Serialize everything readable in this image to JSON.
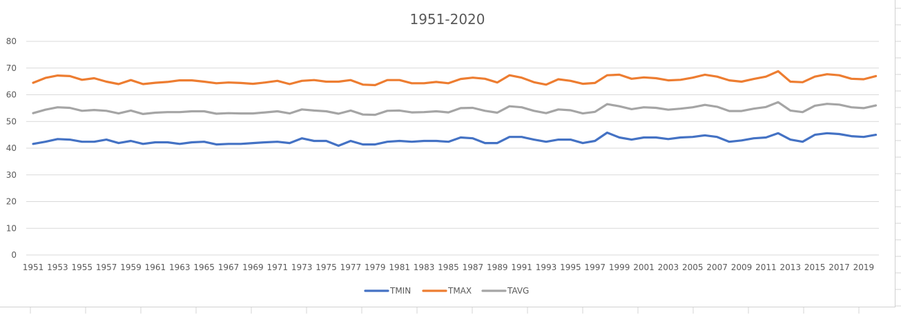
{
  "chart_data": {
    "type": "line",
    "title": "1951-2020",
    "xlabel": "",
    "ylabel": "",
    "ylim": [
      0,
      80
    ],
    "yticks": [
      0,
      10,
      20,
      30,
      40,
      50,
      60,
      70,
      80
    ],
    "grid": "horizontal",
    "legend_position": "bottom",
    "x": [
      1951,
      1952,
      1953,
      1954,
      1955,
      1956,
      1957,
      1958,
      1959,
      1960,
      1961,
      1962,
      1963,
      1964,
      1965,
      1966,
      1967,
      1968,
      1969,
      1970,
      1971,
      1972,
      1973,
      1974,
      1975,
      1976,
      1977,
      1978,
      1979,
      1980,
      1981,
      1982,
      1983,
      1984,
      1985,
      1986,
      1987,
      1988,
      1989,
      1990,
      1991,
      1992,
      1993,
      1994,
      1995,
      1996,
      1997,
      1998,
      1999,
      2000,
      2001,
      2002,
      2003,
      2004,
      2005,
      2006,
      2007,
      2008,
      2009,
      2010,
      2011,
      2012,
      2013,
      2014,
      2015,
      2016,
      2017,
      2018,
      2019,
      2020
    ],
    "xtick_labels": [
      "1951",
      "1953",
      "1955",
      "1957",
      "1959",
      "1961",
      "1963",
      "1965",
      "1967",
      "1969",
      "1971",
      "1973",
      "1975",
      "1977",
      "1979",
      "1981",
      "1983",
      "1985",
      "1987",
      "1989",
      "1991",
      "1993",
      "1995",
      "1997",
      "1999",
      "2001",
      "2003",
      "2005",
      "2007",
      "2009",
      "2011",
      "2013",
      "2015",
      "2017",
      "2019"
    ],
    "series": [
      {
        "name": "TMIN",
        "color": "#4472C4",
        "values": [
          41.6,
          42.4,
          43.4,
          43.2,
          42.4,
          42.4,
          43.2,
          41.9,
          42.7,
          41.6,
          42.2,
          42.2,
          41.6,
          42.2,
          42.4,
          41.4,
          41.6,
          41.6,
          41.9,
          42.2,
          42.4,
          41.9,
          43.7,
          42.7,
          42.7,
          40.9,
          42.7,
          41.4,
          41.4,
          42.4,
          42.7,
          42.4,
          42.7,
          42.7,
          42.4,
          44.0,
          43.7,
          41.9,
          41.9,
          44.2,
          44.2,
          43.2,
          42.4,
          43.2,
          43.2,
          41.9,
          42.7,
          45.8,
          44.0,
          43.2,
          44.0,
          44.0,
          43.4,
          44.0,
          44.2,
          44.8,
          44.2,
          42.4,
          42.9,
          43.7,
          44.0,
          45.6,
          43.2,
          42.4,
          45.0,
          45.6,
          45.3,
          44.5,
          44.2,
          45.0
        ]
      },
      {
        "name": "TMAX",
        "color": "#ED7D31",
        "values": [
          64.5,
          66.3,
          67.2,
          67.0,
          65.6,
          66.2,
          64.9,
          64.0,
          65.5,
          64.0,
          64.5,
          64.8,
          65.4,
          65.4,
          64.9,
          64.3,
          64.6,
          64.4,
          64.1,
          64.6,
          65.2,
          64.0,
          65.2,
          65.5,
          64.9,
          64.9,
          65.5,
          63.8,
          63.6,
          65.5,
          65.5,
          64.3,
          64.3,
          64.8,
          64.3,
          65.9,
          66.4,
          66.0,
          64.6,
          67.3,
          66.4,
          64.7,
          63.8,
          65.8,
          65.2,
          64.1,
          64.4,
          67.3,
          67.5,
          66.0,
          66.5,
          66.2,
          65.4,
          65.6,
          66.4,
          67.5,
          66.8,
          65.4,
          64.9,
          65.9,
          66.8,
          68.8,
          64.9,
          64.7,
          66.8,
          67.7,
          67.3,
          66.0,
          65.8,
          67.0
        ]
      },
      {
        "name": "TAVG",
        "color": "#A5A5A5",
        "values": [
          53.1,
          54.4,
          55.3,
          55.1,
          54.0,
          54.3,
          54.0,
          53.0,
          54.1,
          52.8,
          53.3,
          53.5,
          53.5,
          53.8,
          53.8,
          52.9,
          53.1,
          53.0,
          53.0,
          53.4,
          53.8,
          53.0,
          54.5,
          54.1,
          53.8,
          52.9,
          54.1,
          52.6,
          52.5,
          54.0,
          54.1,
          53.4,
          53.5,
          53.8,
          53.4,
          55.0,
          55.1,
          54.0,
          53.3,
          55.7,
          55.3,
          54.0,
          53.1,
          54.5,
          54.2,
          53.0,
          53.6,
          56.5,
          55.7,
          54.6,
          55.3,
          55.1,
          54.4,
          54.8,
          55.3,
          56.2,
          55.5,
          53.9,
          53.9,
          54.8,
          55.4,
          57.2,
          54.1,
          53.5,
          55.9,
          56.6,
          56.3,
          55.3,
          55.0,
          56.0
        ]
      }
    ]
  }
}
